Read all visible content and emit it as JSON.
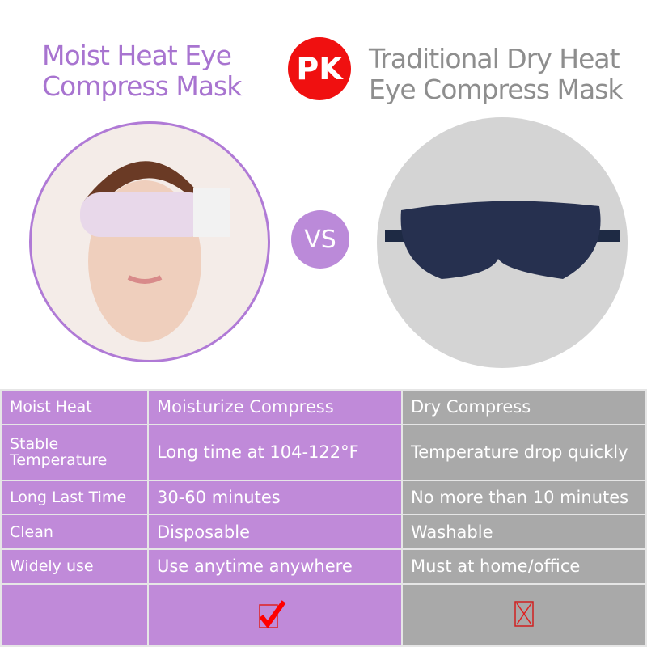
{
  "header": {
    "left_title": [
      "Moist Heat Eye",
      "Compress Mask"
    ],
    "pk": "PK",
    "right_title": [
      "Traditional Dry Heat",
      "Eye Compress Mask"
    ],
    "vs": "VS"
  },
  "colors": {
    "purple": "#c08ad9",
    "gray": "#a9a9a9",
    "pk_red": "#f01010"
  },
  "table": {
    "rows": [
      [
        "Moist Heat",
        "Moisturize Compress",
        "Dry Compress"
      ],
      [
        "Stable Temperature",
        "Long time at 104-122°F",
        "Temperature drop quickly"
      ],
      [
        "Long Last Time",
        "30-60 minutes",
        "No more than 10 minutes"
      ],
      [
        "Clean",
        "Disposable",
        "Washable"
      ],
      [
        "Widely use",
        "Use anytime anywhere",
        "Must at home/office"
      ]
    ],
    "last_row": {
      "moist": "check-icon",
      "dry": "cross-icon"
    }
  }
}
